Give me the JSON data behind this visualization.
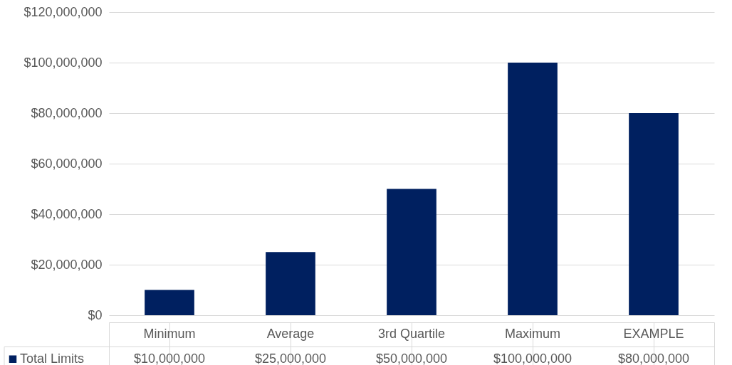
{
  "chart_data": {
    "type": "bar",
    "categories": [
      "Minimum",
      "Average",
      "3rd Quartile",
      "Maximum",
      "EXAMPLE"
    ],
    "series": [
      {
        "name": "Total Limits",
        "color": "#002060",
        "values": [
          10000000,
          25000000,
          50000000,
          100000000,
          80000000
        ],
        "value_labels": [
          "$10,000,000",
          "$25,000,000",
          "$50,000,000",
          "$100,000,000",
          "$80,000,000"
        ]
      }
    ],
    "ylim": [
      0,
      120000000
    ],
    "yticks": [
      {
        "value": 0,
        "label": "$0"
      },
      {
        "value": 20000000,
        "label": "$20,000,000"
      },
      {
        "value": 40000000,
        "label": "$40,000,000"
      },
      {
        "value": 60000000,
        "label": "$60,000,000"
      },
      {
        "value": 80000000,
        "label": "$80,000,000"
      },
      {
        "value": 100000000,
        "label": "$100,000,000"
      },
      {
        "value": 120000000,
        "label": "$120,000,000"
      }
    ],
    "grid": "y",
    "legend": "bottom left"
  }
}
